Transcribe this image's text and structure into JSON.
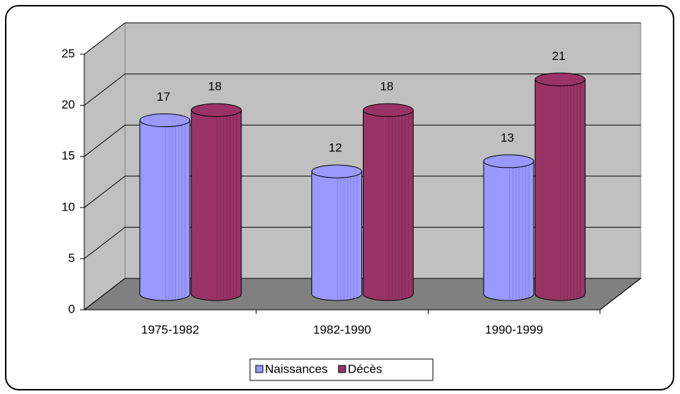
{
  "chart_data": {
    "type": "bar3d",
    "categories": [
      "1975-1982",
      "1982-1990",
      "1990-1999"
    ],
    "series": [
      {
        "name": "Naissances",
        "color": "#9999ff",
        "values": [
          17,
          12,
          13
        ]
      },
      {
        "name": "Décès",
        "color": "#993366",
        "values": [
          18,
          18,
          21
        ]
      }
    ],
    "ylim": [
      0,
      25
    ],
    "yticks": [
      0,
      5,
      10,
      15,
      20,
      25
    ],
    "grid": true,
    "legend": "bottom"
  }
}
